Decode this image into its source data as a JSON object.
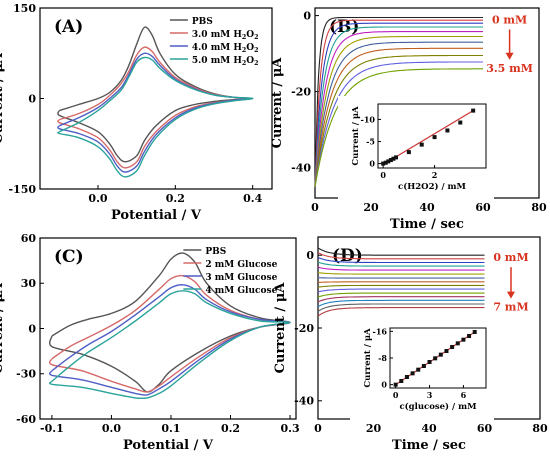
{
  "chart_data": [
    {
      "type": "line",
      "panel_label": "(A)",
      "xlabel": "Potential / V",
      "ylabel": "Current / μA",
      "xlim": [
        -0.15,
        0.45
      ],
      "ylim": [
        -150,
        150
      ],
      "xticks": [
        {
          "value": 0.0,
          "label": "0.0"
        },
        {
          "value": 0.2,
          "label": "0.2"
        },
        {
          "value": 0.4,
          "label": "0.4"
        }
      ],
      "yticks": [
        {
          "value": -150,
          "label": "-150"
        },
        {
          "value": 0,
          "label": "0"
        },
        {
          "value": 150,
          "label": "150"
        }
      ],
      "legend_position": "top-right",
      "series": [
        {
          "name": "PBS",
          "color": "#555555",
          "x": [
            -0.1,
            -0.05,
            0.0,
            0.03,
            0.06,
            0.08,
            0.1,
            0.12,
            0.14,
            0.16,
            0.2,
            0.25,
            0.3,
            0.35,
            0.4,
            0.35,
            0.3,
            0.25,
            0.2,
            0.15,
            0.12,
            0.1,
            0.07,
            0.05,
            0.03,
            0.0,
            -0.05,
            -0.1,
            -0.1
          ],
          "y": [
            -20,
            -10,
            0,
            10,
            30,
            55,
            90,
            118,
            105,
            75,
            40,
            20,
            8,
            2,
            0,
            -2,
            -5,
            -10,
            -20,
            -45,
            -70,
            -95,
            -105,
            -95,
            -75,
            -55,
            -40,
            -28,
            -20
          ]
        },
        {
          "name": "3.0 mM H2O2",
          "color": "#d66a6a",
          "x": [
            -0.1,
            -0.05,
            0.0,
            0.03,
            0.06,
            0.08,
            0.1,
            0.12,
            0.14,
            0.16,
            0.2,
            0.25,
            0.3,
            0.35,
            0.4,
            0.35,
            0.3,
            0.25,
            0.2,
            0.15,
            0.12,
            0.1,
            0.07,
            0.05,
            0.03,
            0.0,
            -0.05,
            -0.1,
            -0.1
          ],
          "y": [
            -35,
            -25,
            -10,
            5,
            25,
            45,
            72,
            85,
            78,
            60,
            35,
            18,
            7,
            2,
            0,
            -3,
            -7,
            -14,
            -28,
            -55,
            -80,
            -105,
            -115,
            -105,
            -85,
            -65,
            -50,
            -40,
            -35
          ]
        },
        {
          "name": "4.0 mM H2O2",
          "color": "#4e5ec4",
          "x": [
            -0.1,
            -0.05,
            0.0,
            0.03,
            0.06,
            0.08,
            0.1,
            0.12,
            0.14,
            0.16,
            0.2,
            0.25,
            0.3,
            0.35,
            0.4,
            0.35,
            0.3,
            0.25,
            0.2,
            0.15,
            0.12,
            0.1,
            0.07,
            0.05,
            0.03,
            0.0,
            -0.05,
            -0.1,
            -0.1
          ],
          "y": [
            -45,
            -32,
            -15,
            0,
            18,
            40,
            65,
            75,
            70,
            55,
            32,
            16,
            6,
            2,
            0,
            -3,
            -8,
            -16,
            -32,
            -60,
            -88,
            -112,
            -122,
            -112,
            -92,
            -72,
            -58,
            -50,
            -45
          ]
        },
        {
          "name": "5.0 mM H2O2",
          "color": "#2aa39a",
          "x": [
            -0.1,
            -0.05,
            0.0,
            0.03,
            0.06,
            0.08,
            0.1,
            0.12,
            0.14,
            0.16,
            0.2,
            0.25,
            0.3,
            0.35,
            0.4,
            0.35,
            0.3,
            0.25,
            0.2,
            0.15,
            0.12,
            0.1,
            0.07,
            0.05,
            0.03,
            0.0,
            -0.05,
            -0.1,
            -0.1
          ],
          "y": [
            -55,
            -40,
            -20,
            -4,
            14,
            36,
            60,
            68,
            64,
            50,
            30,
            15,
            6,
            2,
            0,
            -4,
            -9,
            -18,
            -35,
            -65,
            -95,
            -120,
            -130,
            -120,
            -100,
            -80,
            -65,
            -58,
            -55
          ]
        }
      ]
    },
    {
      "type": "line",
      "panel_label": "(B)",
      "xlabel": "Time / sec",
      "ylabel": "Current / μA",
      "xlim": [
        0,
        80
      ],
      "ylim": [
        -48,
        2
      ],
      "xticks": [
        {
          "value": 0,
          "label": "0"
        },
        {
          "value": 20,
          "label": "20"
        },
        {
          "value": 40,
          "label": "40"
        },
        {
          "value": 60,
          "label": "60"
        },
        {
          "value": 80,
          "label": "80"
        }
      ],
      "yticks": [
        {
          "value": 0,
          "label": "0"
        },
        {
          "value": -20,
          "label": "-20"
        },
        {
          "value": -40,
          "label": "-40"
        }
      ],
      "annotation_top": "0 mM",
      "annotation_bottom": "3.5 mM",
      "steady_levels": [
        -0.5,
        -1.2,
        -2.0,
        -3.0,
        -4.2,
        -5.5,
        -7.0,
        -8.6,
        -10.5,
        -12.2,
        -14.0
      ],
      "colors": [
        "#222222",
        "#d04040",
        "#3040c0",
        "#20a090",
        "#c020c0",
        "#a0a000",
        "#4060a0",
        "#c06020",
        "#808000",
        "#6060e0",
        "#70a000"
      ],
      "inset": {
        "type": "scatter",
        "xlabel": "c(H2O2) / mM",
        "ylabel": "Current / μA",
        "xlim": [
          -0.2,
          4
        ],
        "ylim": [
          1,
          -13.5
        ],
        "xticks": [
          {
            "value": 0,
            "label": "0"
          },
          {
            "value": 2,
            "label": "2"
          }
        ],
        "yticks": [
          {
            "value": 0,
            "label": "0"
          },
          {
            "value": -5,
            "label": "-5"
          },
          {
            "value": -10,
            "label": "-10"
          }
        ],
        "x": [
          0.0,
          0.1,
          0.2,
          0.3,
          0.4,
          0.5,
          1.0,
          1.5,
          2.0,
          2.5,
          3.0,
          3.5
        ],
        "y": [
          0.0,
          -0.2,
          -0.5,
          -0.8,
          -1.1,
          -1.4,
          -2.6,
          -4.3,
          -6.0,
          -7.5,
          -9.3,
          -12.0
        ],
        "fit_x": [
          0,
          3.5
        ],
        "fit_y": [
          0.2,
          -12.0
        ],
        "marker_color": "#111111",
        "fit_color": "#cc3333"
      }
    },
    {
      "type": "line",
      "panel_label": "(C)",
      "xlabel": "Potential / V",
      "ylabel": "Current / μA",
      "xlim": [
        -0.12,
        0.31
      ],
      "ylim": [
        -60,
        60
      ],
      "xticks": [
        {
          "value": -0.1,
          "label": "-0.1"
        },
        {
          "value": 0.0,
          "label": "0.0"
        },
        {
          "value": 0.1,
          "label": "0.1"
        },
        {
          "value": 0.2,
          "label": "0.2"
        },
        {
          "value": 0.3,
          "label": "0.3"
        }
      ],
      "yticks": [
        {
          "value": -60,
          "label": "-60"
        },
        {
          "value": -30,
          "label": "-30"
        },
        {
          "value": 0,
          "label": "0"
        },
        {
          "value": 30,
          "label": "30"
        },
        {
          "value": 60,
          "label": "60"
        }
      ],
      "legend_position": "top-right",
      "series": [
        {
          "name": "PBS",
          "color": "#555555",
          "x": [
            -0.1,
            -0.07,
            -0.04,
            0.0,
            0.04,
            0.08,
            0.1,
            0.12,
            0.14,
            0.16,
            0.2,
            0.25,
            0.3,
            0.25,
            0.2,
            0.15,
            0.1,
            0.08,
            0.06,
            0.04,
            0.0,
            -0.05,
            -0.1,
            -0.1
          ],
          "y": [
            -5,
            2,
            6,
            10,
            18,
            35,
            46,
            50,
            44,
            30,
            15,
            7,
            4,
            1,
            -5,
            -15,
            -28,
            -37,
            -42,
            -35,
            -25,
            -17,
            -12,
            -5
          ]
        },
        {
          "name": "2 mM Glucose",
          "color": "#d66a6a",
          "x": [
            -0.1,
            -0.07,
            -0.04,
            0.0,
            0.04,
            0.08,
            0.1,
            0.12,
            0.14,
            0.16,
            0.2,
            0.25,
            0.3,
            0.25,
            0.2,
            0.15,
            0.1,
            0.08,
            0.06,
            0.04,
            0.0,
            -0.05,
            -0.1,
            -0.1
          ],
          "y": [
            -20,
            -12,
            -6,
            2,
            12,
            26,
            33,
            35,
            31,
            22,
            12,
            6,
            4,
            1,
            -6,
            -18,
            -32,
            -38,
            -42,
            -40,
            -35,
            -28,
            -24,
            -20
          ]
        },
        {
          "name": "3 mM Glucose",
          "color": "#4e5ec4",
          "x": [
            -0.1,
            -0.07,
            -0.04,
            0.0,
            0.04,
            0.08,
            0.1,
            0.12,
            0.14,
            0.16,
            0.2,
            0.25,
            0.3,
            0.25,
            0.2,
            0.15,
            0.1,
            0.08,
            0.06,
            0.04,
            0.0,
            -0.05,
            -0.1,
            -0.1
          ],
          "y": [
            -28,
            -19,
            -11,
            -2,
            9,
            21,
            27,
            29,
            26,
            19,
            11,
            6,
            4,
            1,
            -7,
            -20,
            -35,
            -40,
            -44,
            -43,
            -39,
            -34,
            -31,
            -28
          ]
        },
        {
          "name": "4 mM Glucose",
          "color": "#2aa39a",
          "x": [
            -0.1,
            -0.07,
            -0.04,
            0.0,
            0.04,
            0.08,
            0.1,
            0.12,
            0.14,
            0.16,
            0.2,
            0.25,
            0.3,
            0.25,
            0.2,
            0.15,
            0.1,
            0.08,
            0.06,
            0.04,
            0.0,
            -0.05,
            -0.1,
            -0.1
          ],
          "y": [
            -35,
            -25,
            -16,
            -6,
            5,
            17,
            23,
            25,
            23,
            17,
            10,
            5,
            4,
            1,
            -8,
            -22,
            -38,
            -43,
            -46,
            -46,
            -43,
            -39,
            -37,
            -35
          ]
        }
      ]
    },
    {
      "type": "line",
      "panel_label": "(D)",
      "xlabel": "Time / sec",
      "ylabel": "Current / μA",
      "xlim": [
        0,
        80
      ],
      "ylim": [
        -45,
        5
      ],
      "xticks": [
        {
          "value": 0,
          "label": "0"
        },
        {
          "value": 20,
          "label": "20"
        },
        {
          "value": 40,
          "label": "40"
        },
        {
          "value": 60,
          "label": "60"
        },
        {
          "value": 80,
          "label": "80"
        }
      ],
      "yticks": [
        {
          "value": 0,
          "label": "0"
        },
        {
          "value": -20,
          "label": "-20"
        },
        {
          "value": -40,
          "label": "-40"
        }
      ],
      "annotation_top": "0 mM",
      "annotation_bottom": "7 mM",
      "steady_levels": [
        0.0,
        -1.0,
        -2.0,
        -3.0,
        -4.1,
        -5.2,
        -6.3,
        -7.3,
        -8.3,
        -9.3,
        -10.4,
        -11.4,
        -12.4,
        -13.4,
        -14.4
      ],
      "colors": [
        "#222222",
        "#d04040",
        "#3040c0",
        "#20a090",
        "#c020c0",
        "#a0a000",
        "#4060a0",
        "#c06020",
        "#808000",
        "#6060e0",
        "#70a000",
        "#a03060",
        "#2080c0",
        "#606060",
        "#b04040"
      ],
      "inset": {
        "type": "scatter",
        "xlabel": "c(glucose) / mM",
        "ylabel": "Current / μA",
        "xlim": [
          -0.5,
          8
        ],
        "ylim": [
          1,
          -17
        ],
        "xticks": [
          {
            "value": 0,
            "label": "0"
          },
          {
            "value": 3,
            "label": "3"
          },
          {
            "value": 6,
            "label": "6"
          }
        ],
        "yticks": [
          {
            "value": 0,
            "label": "0"
          },
          {
            "value": -8,
            "label": "-8"
          },
          {
            "value": -16,
            "label": "-16"
          }
        ],
        "x": [
          0.0,
          0.5,
          1.0,
          1.5,
          2.0,
          2.5,
          3.0,
          3.5,
          4.0,
          4.5,
          5.0,
          5.5,
          6.0,
          6.5,
          7.0
        ],
        "y": [
          0.0,
          -1.1,
          -2.3,
          -3.4,
          -4.5,
          -5.6,
          -6.8,
          -7.9,
          -9.0,
          -10.1,
          -11.3,
          -12.4,
          -13.5,
          -14.6,
          -15.8
        ],
        "fit_x": [
          0,
          7
        ],
        "fit_y": [
          0.0,
          -15.8
        ],
        "marker_color": "#111111",
        "fit_color": "#cc3333"
      }
    }
  ]
}
